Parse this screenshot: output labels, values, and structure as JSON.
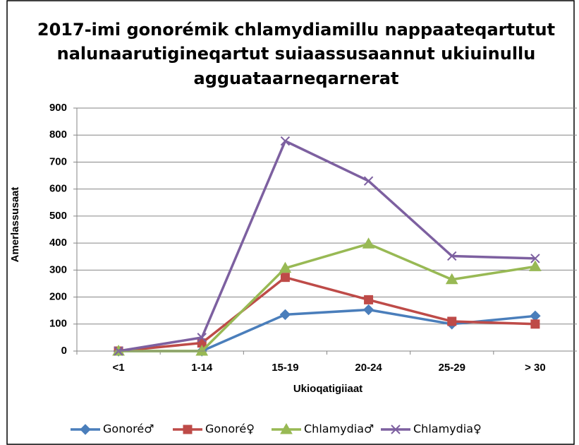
{
  "chart_data": {
    "type": "line",
    "title": [
      "2017-imi gonorémik chlamydiamillu nappaateqartutut",
      "nalunaarutigineqartut suiaassusaannut ukiuinullu",
      "agguataarneqarnerat"
    ],
    "x_label": "Ukioqatigiiaat",
    "y_label": "Amerlassusaat",
    "categories": [
      "<1",
      "1-14",
      "15-19",
      "20-24",
      "25-29",
      "> 30"
    ],
    "series": [
      {
        "name": "Gonoré♂",
        "color": "#4a7ebb",
        "marker": "diamond",
        "values": [
          0,
          0,
          135,
          153,
          100,
          130
        ]
      },
      {
        "name": "Gonoré♀",
        "color": "#be4b48",
        "marker": "square",
        "values": [
          0,
          30,
          273,
          190,
          110,
          100
        ]
      },
      {
        "name": "Chlamydia♂",
        "color": "#98b954",
        "marker": "triangle",
        "values": [
          0,
          0,
          307,
          397,
          265,
          313
        ]
      },
      {
        "name": "Chlamydia♀",
        "color": "#7d60a0",
        "marker": "x",
        "values": [
          0,
          50,
          778,
          630,
          352,
          343
        ]
      }
    ],
    "ylim": [
      0,
      900
    ],
    "yticks": [
      0,
      100,
      200,
      300,
      400,
      500,
      600,
      700,
      800,
      900
    ],
    "grid": true,
    "legend": "bottom"
  }
}
